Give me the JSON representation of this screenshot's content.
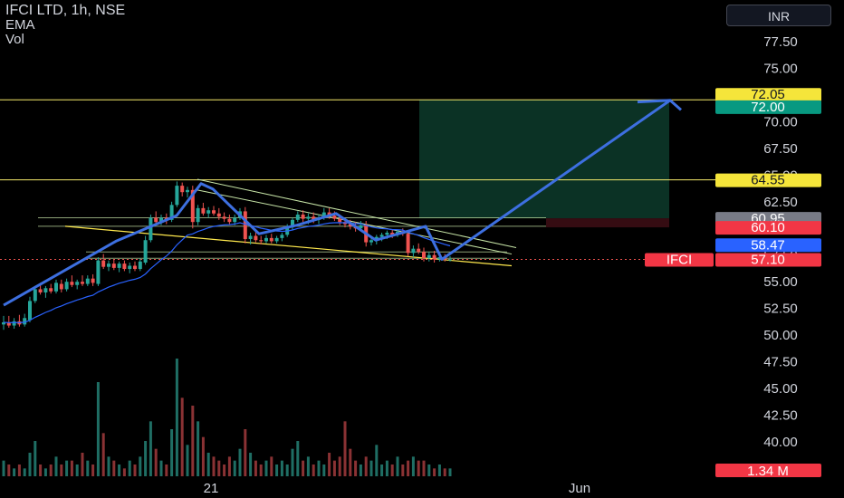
{
  "header": {
    "title": "IFCI LTD, 1h, NSE",
    "indicators": [
      "EMA",
      "Vol"
    ],
    "currency": "INR"
  },
  "colors": {
    "up": "#26a69a",
    "down": "#ef5350",
    "ema": "#2962ff",
    "arrow": "#3d6fe0",
    "hline": "#f5e96b",
    "wedge": "#ffe94d",
    "channel": "#c8e6a8",
    "target_zone": "#0d3b2c",
    "stop_zone": "#3b0d14"
  },
  "chart_data": {
    "type": "candlestick",
    "symbol": "IFCI",
    "interval": "1h",
    "exchange": "NSE",
    "ylim": [
      37.5,
      80.0
    ],
    "y_ticks": [
      "77.50",
      "75.00",
      "72.50",
      "70.00",
      "67.50",
      "65.00",
      "62.50",
      "60.00",
      "57.50",
      "55.00",
      "52.50",
      "50.00",
      "47.50",
      "45.00",
      "42.50",
      "40.00"
    ],
    "x_ticks": [
      "21",
      "Jun"
    ],
    "price_tags": [
      {
        "label": "72.05",
        "value": 72.05,
        "style": "yellow"
      },
      {
        "label": "72.00",
        "value": 72.0,
        "style": "teal"
      },
      {
        "label": "64.55",
        "value": 64.55,
        "style": "yellow"
      },
      {
        "label": "60.95",
        "value": 60.95,
        "style": "gray"
      },
      {
        "label": "60.10",
        "value": 60.1,
        "style": "red"
      },
      {
        "label": "58.47",
        "value": 58.47,
        "style": "blue"
      },
      {
        "label": "57.10",
        "value": 57.1,
        "style": "red",
        "symbol": "IFCI"
      }
    ],
    "volume_tag": "1.34 M",
    "horizontal_lines": [
      72.05,
      64.55
    ],
    "last_price": 57.1,
    "candles": [
      {
        "o": 51.0,
        "h": 51.8,
        "l": 50.5,
        "c": 51.2
      },
      {
        "o": 51.2,
        "h": 51.8,
        "l": 50.7,
        "c": 50.9
      },
      {
        "o": 50.9,
        "h": 51.6,
        "l": 50.6,
        "c": 51.3
      },
      {
        "o": 51.3,
        "h": 51.9,
        "l": 50.8,
        "c": 51.0
      },
      {
        "o": 51.0,
        "h": 52.0,
        "l": 50.8,
        "c": 51.6
      },
      {
        "o": 51.4,
        "h": 53.6,
        "l": 51.2,
        "c": 53.2
      },
      {
        "o": 53.2,
        "h": 54.6,
        "l": 53.0,
        "c": 54.3
      },
      {
        "o": 54.3,
        "h": 54.9,
        "l": 53.8,
        "c": 54.0
      },
      {
        "o": 54.0,
        "h": 54.6,
        "l": 53.5,
        "c": 54.4
      },
      {
        "o": 54.4,
        "h": 54.8,
        "l": 53.9,
        "c": 54.1
      },
      {
        "o": 54.1,
        "h": 55.2,
        "l": 53.9,
        "c": 54.9
      },
      {
        "o": 54.8,
        "h": 55.2,
        "l": 54.0,
        "c": 54.3
      },
      {
        "o": 54.3,
        "h": 55.3,
        "l": 54.1,
        "c": 55.0
      },
      {
        "o": 55.0,
        "h": 55.6,
        "l": 54.5,
        "c": 54.7
      },
      {
        "o": 54.7,
        "h": 55.2,
        "l": 54.3,
        "c": 55.0
      },
      {
        "o": 55.0,
        "h": 55.6,
        "l": 54.6,
        "c": 54.8
      },
      {
        "o": 54.8,
        "h": 55.6,
        "l": 54.6,
        "c": 55.3
      },
      {
        "o": 55.3,
        "h": 55.7,
        "l": 54.6,
        "c": 54.9
      },
      {
        "o": 54.8,
        "h": 57.3,
        "l": 54.6,
        "c": 57.0
      },
      {
        "o": 57.0,
        "h": 57.6,
        "l": 56.2,
        "c": 56.4
      },
      {
        "o": 56.4,
        "h": 57.0,
        "l": 56.0,
        "c": 56.7
      },
      {
        "o": 56.7,
        "h": 57.1,
        "l": 56.1,
        "c": 56.3
      },
      {
        "o": 56.3,
        "h": 56.9,
        "l": 55.9,
        "c": 56.7
      },
      {
        "o": 56.7,
        "h": 57.0,
        "l": 56.0,
        "c": 56.2
      },
      {
        "o": 56.2,
        "h": 56.8,
        "l": 55.8,
        "c": 56.5
      },
      {
        "o": 56.5,
        "h": 56.9,
        "l": 56.0,
        "c": 56.2
      },
      {
        "o": 56.2,
        "h": 57.2,
        "l": 56.0,
        "c": 56.9
      },
      {
        "o": 56.8,
        "h": 59.3,
        "l": 56.6,
        "c": 58.9
      },
      {
        "o": 58.9,
        "h": 61.3,
        "l": 58.7,
        "c": 61.0
      },
      {
        "o": 61.0,
        "h": 61.6,
        "l": 60.4,
        "c": 60.6
      },
      {
        "o": 60.6,
        "h": 61.3,
        "l": 60.3,
        "c": 61.0
      },
      {
        "o": 61.0,
        "h": 61.4,
        "l": 60.4,
        "c": 60.8
      },
      {
        "o": 60.8,
        "h": 62.5,
        "l": 60.6,
        "c": 62.2
      },
      {
        "o": 62.2,
        "h": 64.4,
        "l": 62.0,
        "c": 64.0
      },
      {
        "o": 64.0,
        "h": 64.3,
        "l": 63.0,
        "c": 63.4
      },
      {
        "o": 63.4,
        "h": 63.9,
        "l": 62.9,
        "c": 63.6
      },
      {
        "o": 63.6,
        "h": 64.0,
        "l": 60.0,
        "c": 60.6
      },
      {
        "o": 60.6,
        "h": 62.2,
        "l": 60.3,
        "c": 61.9
      },
      {
        "o": 61.9,
        "h": 62.4,
        "l": 61.2,
        "c": 61.4
      },
      {
        "o": 61.4,
        "h": 62.0,
        "l": 61.0,
        "c": 61.7
      },
      {
        "o": 61.7,
        "h": 62.1,
        "l": 61.2,
        "c": 61.4
      },
      {
        "o": 61.4,
        "h": 61.9,
        "l": 60.8,
        "c": 61.1
      },
      {
        "o": 61.1,
        "h": 61.5,
        "l": 60.6,
        "c": 60.9
      },
      {
        "o": 60.9,
        "h": 61.3,
        "l": 60.4,
        "c": 60.6
      },
      {
        "o": 60.6,
        "h": 61.3,
        "l": 60.3,
        "c": 61.0
      },
      {
        "o": 61.0,
        "h": 61.9,
        "l": 60.8,
        "c": 61.6
      },
      {
        "o": 61.6,
        "h": 62.0,
        "l": 58.6,
        "c": 59.0
      },
      {
        "o": 59.0,
        "h": 59.6,
        "l": 58.5,
        "c": 59.3
      },
      {
        "o": 59.3,
        "h": 59.7,
        "l": 58.7,
        "c": 58.9
      },
      {
        "o": 58.9,
        "h": 59.3,
        "l": 58.5,
        "c": 58.8
      },
      {
        "o": 58.8,
        "h": 59.4,
        "l": 58.6,
        "c": 59.1
      },
      {
        "o": 59.1,
        "h": 59.5,
        "l": 58.6,
        "c": 58.8
      },
      {
        "o": 58.8,
        "h": 59.3,
        "l": 58.6,
        "c": 59.1
      },
      {
        "o": 59.1,
        "h": 59.6,
        "l": 58.8,
        "c": 59.4
      },
      {
        "o": 59.4,
        "h": 60.4,
        "l": 59.2,
        "c": 60.1
      },
      {
        "o": 60.1,
        "h": 61.0,
        "l": 59.9,
        "c": 60.8
      },
      {
        "o": 60.8,
        "h": 61.6,
        "l": 60.6,
        "c": 61.3
      },
      {
        "o": 61.3,
        "h": 61.7,
        "l": 60.6,
        "c": 60.9
      },
      {
        "o": 60.9,
        "h": 61.4,
        "l": 60.4,
        "c": 61.1
      },
      {
        "o": 61.1,
        "h": 61.5,
        "l": 60.5,
        "c": 60.8
      },
      {
        "o": 60.8,
        "h": 61.3,
        "l": 60.4,
        "c": 61.0
      },
      {
        "o": 61.0,
        "h": 61.9,
        "l": 60.8,
        "c": 61.5
      },
      {
        "o": 61.5,
        "h": 61.9,
        "l": 60.9,
        "c": 61.2
      },
      {
        "o": 61.2,
        "h": 61.6,
        "l": 60.7,
        "c": 60.9
      },
      {
        "o": 60.9,
        "h": 61.3,
        "l": 60.3,
        "c": 60.6
      },
      {
        "o": 60.6,
        "h": 61.0,
        "l": 60.1,
        "c": 60.4
      },
      {
        "o": 60.4,
        "h": 60.8,
        "l": 59.9,
        "c": 60.2
      },
      {
        "o": 60.2,
        "h": 60.6,
        "l": 59.7,
        "c": 60.0
      },
      {
        "o": 60.0,
        "h": 60.7,
        "l": 59.8,
        "c": 60.3
      },
      {
        "o": 60.3,
        "h": 60.7,
        "l": 58.3,
        "c": 58.7
      },
      {
        "o": 58.7,
        "h": 59.2,
        "l": 58.4,
        "c": 58.9
      },
      {
        "o": 58.9,
        "h": 59.4,
        "l": 58.5,
        "c": 59.2
      },
      {
        "o": 59.2,
        "h": 59.6,
        "l": 58.8,
        "c": 59.4
      },
      {
        "o": 59.4,
        "h": 59.8,
        "l": 59.0,
        "c": 59.6
      },
      {
        "o": 59.6,
        "h": 59.9,
        "l": 59.1,
        "c": 59.4
      },
      {
        "o": 59.4,
        "h": 59.9,
        "l": 59.2,
        "c": 59.7
      },
      {
        "o": 59.7,
        "h": 60.0,
        "l": 59.3,
        "c": 59.5
      },
      {
        "o": 59.5,
        "h": 59.8,
        "l": 57.4,
        "c": 57.7
      },
      {
        "o": 57.7,
        "h": 58.4,
        "l": 57.3,
        "c": 58.1
      },
      {
        "o": 58.1,
        "h": 58.6,
        "l": 57.6,
        "c": 57.8
      },
      {
        "o": 57.8,
        "h": 58.2,
        "l": 56.9,
        "c": 57.2
      },
      {
        "o": 57.2,
        "h": 57.8,
        "l": 56.9,
        "c": 57.5
      },
      {
        "o": 57.5,
        "h": 57.9,
        "l": 56.8,
        "c": 57.1
      },
      {
        "o": 57.1,
        "h": 57.5,
        "l": 56.9,
        "c": 57.3
      },
      {
        "o": 57.3,
        "h": 57.6,
        "l": 56.9,
        "c": 57.1
      },
      {
        "o": 57.1,
        "h": 57.4,
        "l": 56.9,
        "c": 57.1
      }
    ],
    "volume": [
      4,
      3,
      2,
      3,
      2,
      6,
      9,
      3,
      2,
      3,
      5,
      3,
      4,
      4,
      3,
      6,
      4,
      3,
      24,
      11,
      5,
      4,
      3,
      2,
      4,
      3,
      5,
      9,
      14,
      7,
      4,
      3,
      12,
      30,
      20,
      8,
      18,
      14,
      10,
      6,
      5,
      4,
      3,
      5,
      4,
      7,
      12,
      6,
      4,
      3,
      4,
      5,
      3,
      4,
      3,
      7,
      9,
      4,
      5,
      3,
      4,
      3,
      6,
      4,
      5,
      14,
      7,
      4,
      3,
      5,
      4,
      8,
      3,
      4,
      3,
      5,
      3,
      4,
      5,
      4,
      4,
      3,
      2,
      3,
      2,
      2
    ]
  }
}
